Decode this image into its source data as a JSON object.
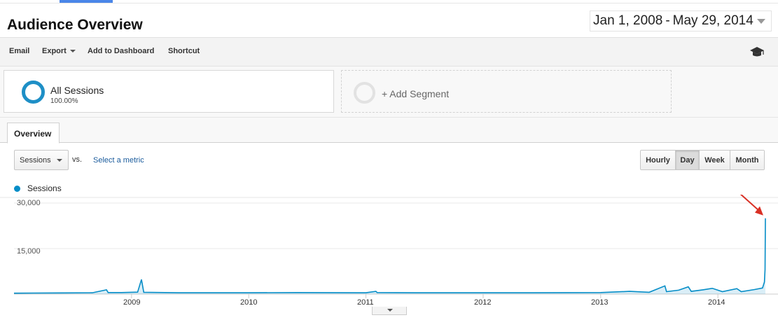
{
  "page": {
    "title": "Audience Overview"
  },
  "date_range": {
    "start": "Jan 1, 2008",
    "separator": "-",
    "end": "May 29, 2014"
  },
  "toolbar": {
    "email": "Email",
    "export": "Export",
    "add_to_dashboard": "Add to Dashboard",
    "shortcut": "Shortcut",
    "help_icon": "graduation-cap-icon"
  },
  "segments": {
    "active": {
      "name": "All Sessions",
      "percent": "100.00%"
    },
    "add_label": "+ Add Segment"
  },
  "tabs": [
    {
      "label": "Overview"
    }
  ],
  "metric": {
    "selected": "Sessions",
    "vs_label": "vs.",
    "select_link": "Select a metric"
  },
  "granularity": {
    "options": [
      "Hourly",
      "Day",
      "Week",
      "Month"
    ],
    "selected": "Day"
  },
  "legend": {
    "series_name": "Sessions",
    "color": "#058dc7"
  },
  "colors": {
    "series": "#058dc7",
    "annotation_arrow": "#d93025",
    "accent": "#4a86e8"
  },
  "chart_data": {
    "type": "area",
    "title": "",
    "xlabel": "",
    "ylabel": "",
    "series": [
      {
        "name": "Sessions",
        "points": [
          [
            "2008-01-01",
            300
          ],
          [
            "2008-03-01",
            350
          ],
          [
            "2008-06-01",
            400
          ],
          [
            "2008-09-01",
            450
          ],
          [
            "2008-10-15",
            1400
          ],
          [
            "2008-10-20",
            500
          ],
          [
            "2008-12-01",
            500
          ],
          [
            "2009-01-20",
            650
          ],
          [
            "2009-02-01",
            4800
          ],
          [
            "2009-02-08",
            600
          ],
          [
            "2009-06-01",
            450
          ],
          [
            "2010-01-01",
            450
          ],
          [
            "2010-06-01",
            500
          ],
          [
            "2011-01-01",
            450
          ],
          [
            "2011-02-01",
            900
          ],
          [
            "2011-02-05",
            500
          ],
          [
            "2011-06-01",
            450
          ],
          [
            "2012-01-01",
            450
          ],
          [
            "2012-06-01",
            450
          ],
          [
            "2013-01-01",
            500
          ],
          [
            "2013-04-01",
            900
          ],
          [
            "2013-06-01",
            600
          ],
          [
            "2013-07-20",
            2700
          ],
          [
            "2013-07-25",
            800
          ],
          [
            "2013-09-01",
            1300
          ],
          [
            "2013-10-01",
            2400
          ],
          [
            "2013-10-10",
            900
          ],
          [
            "2013-11-15",
            1400
          ],
          [
            "2013-12-15",
            1900
          ],
          [
            "2014-01-15",
            800
          ],
          [
            "2014-03-01",
            1800
          ],
          [
            "2014-03-15",
            800
          ],
          [
            "2014-04-25",
            1500
          ],
          [
            "2014-05-20",
            2000
          ],
          [
            "2014-05-26",
            4000
          ],
          [
            "2014-05-28",
            8000
          ],
          [
            "2014-05-29",
            25000
          ]
        ]
      }
    ],
    "x_range": [
      "2008-01-01",
      "2014-05-29"
    ],
    "x_ticks": [
      "2009",
      "2010",
      "2011",
      "2012",
      "2013",
      "2014"
    ],
    "y_ticks": [
      "30,000",
      "15,000"
    ],
    "ylim": [
      0,
      30000
    ],
    "grid": true,
    "legend_position": "top-left",
    "annotation": "arrow pointing at final spike"
  }
}
